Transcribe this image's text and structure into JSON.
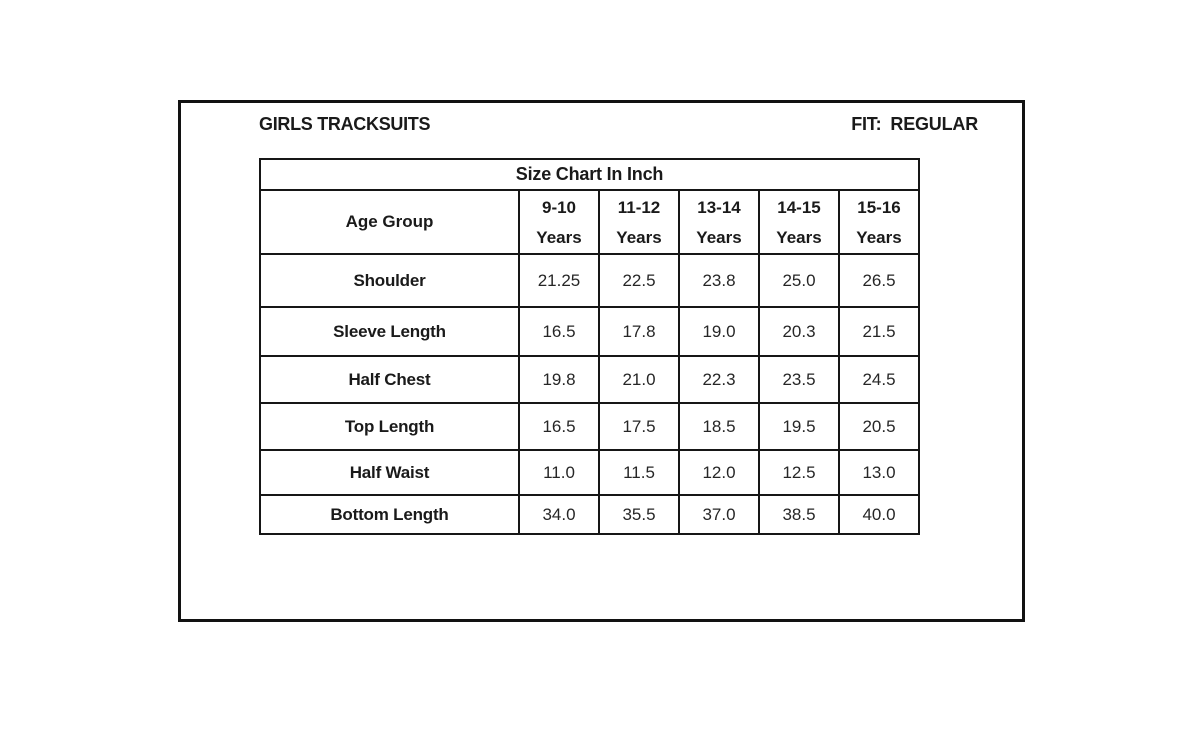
{
  "header": {
    "title": "GIRLS TRACKSUITS",
    "fit_key": "FIT:",
    "fit_value": "REGULAR"
  },
  "chart_data": {
    "type": "table",
    "title": "Size Chart In Inch",
    "corner_label": "Age Group",
    "columns": [
      {
        "range": "9-10",
        "suffix": "Years"
      },
      {
        "range": "11-12",
        "suffix": "Years"
      },
      {
        "range": "13-14",
        "suffix": "Years"
      },
      {
        "range": "14-15",
        "suffix": "Years"
      },
      {
        "range": "15-16",
        "suffix": "Years"
      }
    ],
    "rows": [
      {
        "label": "Shoulder",
        "values": [
          "21.25",
          "22.5",
          "23.8",
          "25.0",
          "26.5"
        ]
      },
      {
        "label": "Sleeve Length",
        "values": [
          "16.5",
          "17.8",
          "19.0",
          "20.3",
          "21.5"
        ]
      },
      {
        "label": "Half Chest",
        "values": [
          "19.8",
          "21.0",
          "22.3",
          "23.5",
          "24.5"
        ]
      },
      {
        "label": "Top Length",
        "values": [
          "16.5",
          "17.5",
          "18.5",
          "19.5",
          "20.5"
        ]
      },
      {
        "label": "Half Waist",
        "values": [
          "11.0",
          "11.5",
          "12.0",
          "12.5",
          "13.0"
        ]
      },
      {
        "label": "Bottom Length",
        "values": [
          "34.0",
          "35.5",
          "37.0",
          "38.5",
          "40.0"
        ]
      }
    ],
    "colors": {
      "border": "#161616",
      "text": "#1a1a1a",
      "background": "#ffffff"
    }
  }
}
